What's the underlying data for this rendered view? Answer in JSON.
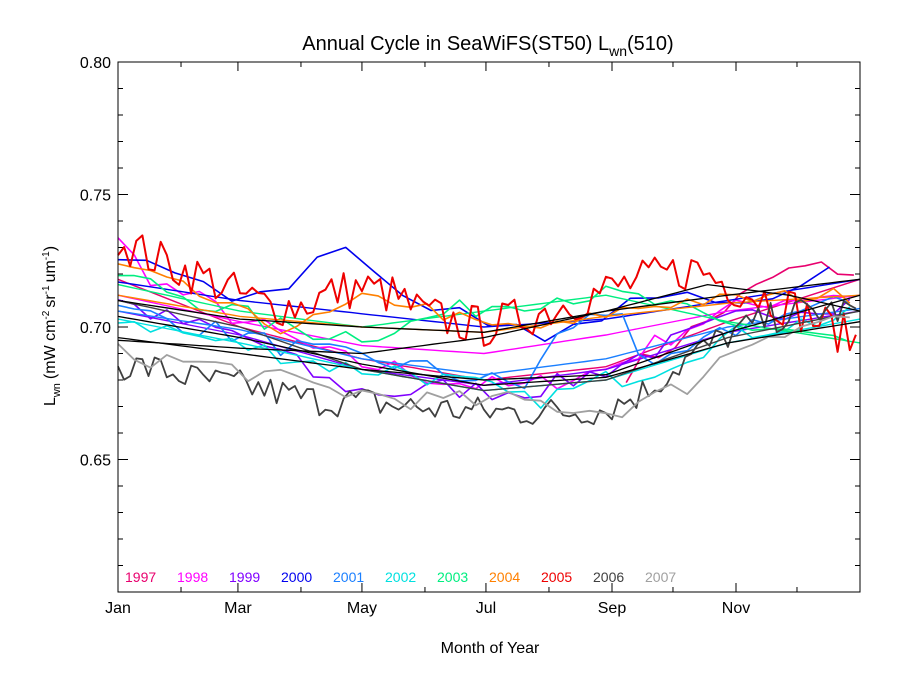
{
  "chart_data": {
    "type": "line",
    "title": "Annual Cycle in SeaWiFS(ST50) L",
    "title_sub": "wn",
    "title_tail": "(510)",
    "xlabel": "Month of Year",
    "ylabel": "L",
    "ylabel_sub": "wn",
    "ylabel_units": "(mW cm",
    "ylabel_units_2": "sr",
    "ylabel_units_3": "um",
    "ylabel_sup_a": "-2",
    "ylabel_sup_b": "-1",
    "ylabel_sup_c": "-1",
    "ylabel_close": ")",
    "xlim": [
      0,
      365
    ],
    "ylim": [
      0.6,
      0.8
    ],
    "xticks": [
      {
        "day": 0,
        "label": "Jan"
      },
      {
        "day": 59,
        "label": "Mar"
      },
      {
        "day": 120,
        "label": "May"
      },
      {
        "day": 181,
        "label": "Jul"
      },
      {
        "day": 243,
        "label": "Sep"
      },
      {
        "day": 304,
        "label": "Nov"
      }
    ],
    "yticks": [
      {
        "value": 0.65,
        "label": "0.65"
      },
      {
        "value": 0.7,
        "label": "0.70"
      },
      {
        "value": 0.75,
        "label": "0.75"
      },
      {
        "value": 0.8,
        "label": "0.80"
      }
    ],
    "grid": false,
    "legend_position": "bottom-left",
    "series": [
      {
        "name": "1997",
        "color": "#e8006e",
        "noise": 0.004,
        "step": 8,
        "width": 1.6,
        "points": [
          [
            250,
            0.683
          ],
          [
            262,
            0.688
          ],
          [
            275,
            0.695
          ],
          [
            290,
            0.702
          ],
          [
            300,
            0.708
          ],
          [
            312,
            0.713
          ],
          [
            325,
            0.72
          ],
          [
            338,
            0.722
          ],
          [
            355,
            0.722
          ],
          [
            365,
            0.72
          ]
        ],
        "fit": [
          [
            0,
            0.718
          ],
          [
            60,
            0.7
          ],
          [
            120,
            0.688
          ],
          [
            180,
            0.68
          ],
          [
            240,
            0.685
          ],
          [
            300,
            0.702
          ],
          [
            365,
            0.718
          ]
        ]
      },
      {
        "name": "1998",
        "color": "#ff00ff",
        "noise": 0.004,
        "step": 8,
        "width": 1.6,
        "points": [
          [
            0,
            0.732
          ],
          [
            20,
            0.716
          ],
          [
            40,
            0.71
          ],
          [
            60,
            0.703
          ],
          [
            80,
            0.697
          ],
          [
            100,
            0.69
          ],
          [
            120,
            0.686
          ],
          [
            140,
            0.684
          ],
          [
            160,
            0.68
          ],
          [
            180,
            0.678
          ],
          [
            200,
            0.677
          ],
          [
            220,
            0.681
          ],
          [
            240,
            0.684
          ],
          [
            260,
            0.692
          ],
          [
            280,
            0.7
          ],
          [
            300,
            0.706
          ],
          [
            320,
            0.71
          ],
          [
            340,
            0.712
          ],
          [
            365,
            0.713
          ]
        ],
        "fit": [
          [
            0,
            0.712
          ],
          [
            60,
            0.702
          ],
          [
            120,
            0.693
          ],
          [
            180,
            0.69
          ],
          [
            240,
            0.697
          ],
          [
            300,
            0.706
          ],
          [
            365,
            0.712
          ]
        ]
      },
      {
        "name": "1999",
        "color": "#8000ff",
        "noise": 0.004,
        "step": 8,
        "width": 1.6,
        "points": [
          [
            0,
            0.71
          ],
          [
            20,
            0.704
          ],
          [
            40,
            0.7
          ],
          [
            60,
            0.697
          ],
          [
            80,
            0.69
          ],
          [
            100,
            0.68
          ],
          [
            120,
            0.676
          ],
          [
            140,
            0.675
          ],
          [
            160,
            0.677
          ],
          [
            180,
            0.676
          ],
          [
            200,
            0.676
          ],
          [
            220,
            0.679
          ],
          [
            240,
            0.684
          ],
          [
            260,
            0.69
          ],
          [
            280,
            0.696
          ],
          [
            300,
            0.702
          ],
          [
            320,
            0.706
          ],
          [
            340,
            0.708
          ],
          [
            365,
            0.71
          ]
        ],
        "fit": [
          [
            0,
            0.706
          ],
          [
            60,
            0.697
          ],
          [
            120,
            0.684
          ],
          [
            180,
            0.678
          ],
          [
            240,
            0.684
          ],
          [
            300,
            0.698
          ],
          [
            365,
            0.706
          ]
        ]
      },
      {
        "name": "2000",
        "color": "#0000ee",
        "noise": 0.003,
        "step": 14,
        "width": 1.6,
        "points": [
          [
            0,
            0.727
          ],
          [
            30,
            0.72
          ],
          [
            60,
            0.71
          ],
          [
            80,
            0.712
          ],
          [
            95,
            0.727
          ],
          [
            120,
            0.728
          ],
          [
            140,
            0.712
          ],
          [
            160,
            0.708
          ],
          [
            180,
            0.7
          ],
          [
            200,
            0.698
          ],
          [
            220,
            0.697
          ],
          [
            240,
            0.705
          ],
          [
            260,
            0.71
          ],
          [
            280,
            0.712
          ],
          [
            300,
            0.71
          ],
          [
            320,
            0.712
          ],
          [
            340,
            0.716
          ],
          [
            355,
            0.73
          ]
        ],
        "fit": [
          [
            0,
            0.717
          ],
          [
            60,
            0.71
          ],
          [
            120,
            0.705
          ],
          [
            180,
            0.7
          ],
          [
            240,
            0.703
          ],
          [
            300,
            0.71
          ],
          [
            365,
            0.718
          ]
        ]
      },
      {
        "name": "2001",
        "color": "#1a7fff",
        "noise": 0.004,
        "step": 8,
        "width": 1.6,
        "points": [
          [
            0,
            0.706
          ],
          [
            20,
            0.704
          ],
          [
            40,
            0.7
          ],
          [
            60,
            0.697
          ],
          [
            80,
            0.693
          ],
          [
            100,
            0.69
          ],
          [
            120,
            0.688
          ],
          [
            140,
            0.686
          ],
          [
            160,
            0.683
          ],
          [
            180,
            0.68
          ],
          [
            200,
            0.678
          ],
          [
            220,
            0.7
          ],
          [
            240,
            0.705
          ],
          [
            250,
            0.708
          ],
          [
            260,
            0.68
          ],
          [
            280,
            0.69
          ],
          [
            300,
            0.698
          ],
          [
            320,
            0.704
          ],
          [
            340,
            0.706
          ],
          [
            365,
            0.71
          ]
        ],
        "fit": [
          [
            0,
            0.706
          ],
          [
            60,
            0.699
          ],
          [
            120,
            0.688
          ],
          [
            180,
            0.682
          ],
          [
            240,
            0.688
          ],
          [
            300,
            0.7
          ],
          [
            365,
            0.707
          ]
        ]
      },
      {
        "name": "2002",
        "color": "#00e0e0",
        "noise": 0.004,
        "step": 8,
        "width": 1.6,
        "points": [
          [
            0,
            0.704
          ],
          [
            20,
            0.7
          ],
          [
            40,
            0.696
          ],
          [
            60,
            0.693
          ],
          [
            80,
            0.69
          ],
          [
            100,
            0.686
          ],
          [
            120,
            0.684
          ],
          [
            140,
            0.684
          ],
          [
            160,
            0.68
          ],
          [
            180,
            0.677
          ],
          [
            200,
            0.672
          ],
          [
            220,
            0.675
          ],
          [
            240,
            0.68
          ],
          [
            260,
            0.683
          ],
          [
            280,
            0.69
          ],
          [
            300,
            0.696
          ],
          [
            320,
            0.7
          ],
          [
            340,
            0.702
          ],
          [
            365,
            0.704
          ]
        ],
        "fit": [
          [
            0,
            0.703
          ],
          [
            60,
            0.694
          ],
          [
            120,
            0.684
          ],
          [
            180,
            0.676
          ],
          [
            240,
            0.68
          ],
          [
            300,
            0.694
          ],
          [
            365,
            0.703
          ]
        ]
      },
      {
        "name": "2003",
        "color": "#00ee80",
        "noise": 0.004,
        "step": 8,
        "width": 1.6,
        "points": [
          [
            0,
            0.72
          ],
          [
            20,
            0.715
          ],
          [
            40,
            0.71
          ],
          [
            60,
            0.705
          ],
          [
            80,
            0.7
          ],
          [
            100,
            0.698
          ],
          [
            120,
            0.697
          ],
          [
            140,
            0.7
          ],
          [
            160,
            0.705
          ],
          [
            180,
            0.708
          ],
          [
            200,
            0.71
          ],
          [
            220,
            0.712
          ],
          [
            240,
            0.712
          ],
          [
            260,
            0.71
          ],
          [
            280,
            0.705
          ],
          [
            300,
            0.7
          ],
          [
            320,
            0.7
          ],
          [
            340,
            0.698
          ],
          [
            360,
            0.693
          ]
        ],
        "fit": [
          [
            0,
            0.716
          ],
          [
            60,
            0.706
          ],
          [
            120,
            0.7
          ],
          [
            180,
            0.706
          ],
          [
            240,
            0.712
          ],
          [
            300,
            0.702
          ],
          [
            365,
            0.694
          ]
        ]
      },
      {
        "name": "2004",
        "color": "#ff8000",
        "noise": 0.003,
        "step": 8,
        "width": 1.6,
        "points": [
          [
            0,
            0.723
          ],
          [
            20,
            0.718
          ],
          [
            40,
            0.712
          ],
          [
            60,
            0.705
          ],
          [
            80,
            0.7
          ],
          [
            100,
            0.703
          ],
          [
            120,
            0.71
          ],
          [
            140,
            0.71
          ],
          [
            160,
            0.705
          ],
          [
            180,
            0.7
          ],
          [
            200,
            0.7
          ],
          [
            220,
            0.7
          ],
          [
            240,
            0.705
          ],
          [
            260,
            0.708
          ],
          [
            280,
            0.71
          ],
          [
            300,
            0.71
          ],
          [
            320,
            0.711
          ],
          [
            340,
            0.712
          ],
          [
            365,
            0.712
          ]
        ],
        "fit": [
          [
            0,
            0.712
          ],
          [
            60,
            0.704
          ],
          [
            120,
            0.7
          ],
          [
            180,
            0.698
          ],
          [
            240,
            0.704
          ],
          [
            300,
            0.709
          ],
          [
            365,
            0.712
          ]
        ]
      },
      {
        "name": "2005",
        "color": "#ee0000",
        "noise": 0.008,
        "step": 3,
        "width": 2.0,
        "points": [
          [
            0,
            0.733
          ],
          [
            15,
            0.727
          ],
          [
            30,
            0.722
          ],
          [
            45,
            0.718
          ],
          [
            60,
            0.712
          ],
          [
            75,
            0.708
          ],
          [
            90,
            0.708
          ],
          [
            105,
            0.713
          ],
          [
            120,
            0.715
          ],
          [
            135,
            0.712
          ],
          [
            150,
            0.705
          ],
          [
            165,
            0.702
          ],
          [
            180,
            0.7
          ],
          [
            195,
            0.703
          ],
          [
            210,
            0.706
          ],
          [
            225,
            0.71
          ],
          [
            240,
            0.714
          ],
          [
            255,
            0.717
          ],
          [
            270,
            0.72
          ],
          [
            285,
            0.722
          ],
          [
            300,
            0.716
          ],
          [
            315,
            0.712
          ],
          [
            330,
            0.708
          ],
          [
            345,
            0.702
          ],
          [
            365,
            0.694
          ]
        ],
        "fit": null
      },
      {
        "name": "2006",
        "color": "#404040",
        "noise": 0.006,
        "step": 3,
        "width": 1.8,
        "points": [
          [
            0,
            0.686
          ],
          [
            20,
            0.684
          ],
          [
            40,
            0.68
          ],
          [
            60,
            0.678
          ],
          [
            80,
            0.675
          ],
          [
            100,
            0.672
          ],
          [
            120,
            0.672
          ],
          [
            140,
            0.67
          ],
          [
            160,
            0.669
          ],
          [
            180,
            0.668
          ],
          [
            200,
            0.668
          ],
          [
            220,
            0.668
          ],
          [
            240,
            0.669
          ],
          [
            260,
            0.676
          ],
          [
            280,
            0.688
          ],
          [
            300,
            0.697
          ],
          [
            320,
            0.703
          ],
          [
            340,
            0.706
          ],
          [
            365,
            0.706
          ]
        ],
        "fit": [
          [
            0,
            0.71
          ],
          [
            60,
            0.7
          ],
          [
            120,
            0.684
          ],
          [
            180,
            0.676
          ],
          [
            240,
            0.68
          ],
          [
            300,
            0.696
          ],
          [
            365,
            0.706
          ]
        ]
      },
      {
        "name": "2007",
        "color": "#a0a0a0",
        "noise": 0.004,
        "step": 8,
        "width": 1.8,
        "points": [
          [
            0,
            0.69
          ],
          [
            20,
            0.688
          ],
          [
            40,
            0.686
          ],
          [
            60,
            0.684
          ],
          [
            80,
            0.68
          ],
          [
            100,
            0.677
          ],
          [
            120,
            0.675
          ],
          [
            140,
            0.673
          ],
          [
            160,
            0.672
          ],
          [
            180,
            0.672
          ],
          [
            200,
            0.672
          ],
          [
            220,
            0.67
          ],
          [
            240,
            0.668
          ],
          [
            260,
            0.672
          ],
          [
            280,
            0.678
          ],
          [
            300,
            0.69
          ],
          [
            320,
            0.698
          ],
          [
            340,
            0.702
          ],
          [
            365,
            0.704
          ]
        ],
        "fit": null
      }
    ]
  }
}
